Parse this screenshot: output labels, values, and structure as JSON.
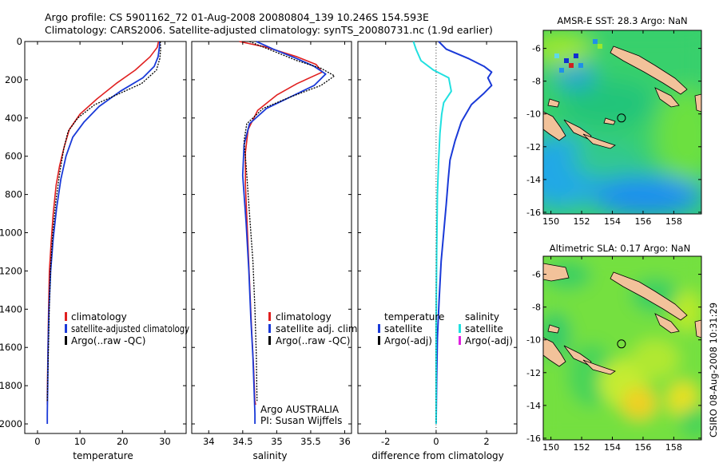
{
  "header": {
    "line1": "Argo profile: CS 5901162_72 01-Aug-2008 20080804_139 10.246S 154.593E",
    "line2": "Climatology: CARS2006. Satellite-adjusted climatology: synTS_20080731.nc (1.9d earlier)"
  },
  "side_label": "CSIRO 08-Aug-2008 10:31:29",
  "colors": {
    "climatology": "#e02020",
    "satellite": "#1a3ad8",
    "argo": "#000000",
    "satellite_diff_salinity": "#20e0e0",
    "argo_adj_salinity": "#e020e0"
  },
  "chart_data": [
    {
      "type": "line",
      "name": "temperature-profile",
      "xlabel": "temperature",
      "ylabel": "",
      "xlim": [
        -3,
        35
      ],
      "ylim": [
        2050,
        0
      ],
      "xticks": [
        0,
        10,
        20,
        30
      ],
      "yticks": [
        0,
        200,
        400,
        600,
        800,
        1000,
        1200,
        1400,
        1600,
        1800,
        2000
      ],
      "y_reversed": true,
      "legend": {
        "placement": "lower-left",
        "entries": [
          {
            "label": "climatology",
            "color": "#e02020"
          },
          {
            "label": "satellite-adjusted climatology",
            "color": "#1a3ad8"
          },
          {
            "label": "Argo(..raw -QC)",
            "color": "#000000"
          }
        ]
      },
      "series": [
        {
          "label": "climatology",
          "color": "#e02020",
          "width": 1.6,
          "dash": "",
          "x": [
            28.5,
            28.2,
            26.5,
            23,
            18.5,
            14,
            10,
            7.5,
            6.3,
            5.2,
            4.4,
            3.7,
            3.2,
            2.8,
            2.6,
            2.5,
            2.4,
            2.3,
            2.3
          ],
          "y": [
            0,
            30,
            80,
            150,
            220,
            300,
            380,
            460,
            550,
            650,
            750,
            900,
            1050,
            1200,
            1400,
            1550,
            1700,
            1850,
            1900
          ]
        },
        {
          "label": "satellite-adjusted",
          "color": "#1a3ad8",
          "width": 1.8,
          "dash": "",
          "x": [
            28.8,
            28.7,
            28.4,
            27.5,
            24.8,
            19.5,
            14.5,
            11,
            8.3,
            6.7,
            5.5,
            4.5,
            3.7,
            3.1,
            2.7,
            2.5,
            2.4,
            2.3,
            2.3
          ],
          "y": [
            0,
            30,
            80,
            130,
            190,
            260,
            340,
            420,
            500,
            600,
            720,
            870,
            1030,
            1200,
            1400,
            1600,
            1800,
            1950,
            2000
          ]
        },
        {
          "label": "Argo(..raw -QC)",
          "color": "#000000",
          "width": 1.3,
          "dash": "2 1.5",
          "x": [
            28.9,
            29,
            28.8,
            28,
            24.5,
            18.5,
            13.5,
            9.5,
            7.2,
            6.2,
            5.2,
            4.3,
            3.6,
            3.1,
            2.8,
            2.6,
            2.4,
            2.3
          ],
          "y": [
            0,
            40,
            90,
            150,
            220,
            280,
            330,
            400,
            470,
            560,
            690,
            840,
            1000,
            1180,
            1380,
            1580,
            1780,
            1880
          ]
        }
      ]
    },
    {
      "type": "line",
      "name": "salinity-profile",
      "xlabel": "salinity",
      "ylabel": "",
      "xlim": [
        33.75,
        36.1
      ],
      "ylim": [
        2050,
        0
      ],
      "xticks": [
        34,
        34.5,
        35,
        35.5,
        36
      ],
      "yticks": [
        0,
        200,
        400,
        600,
        800,
        1000,
        1200,
        1400,
        1600,
        1800,
        2000
      ],
      "y_reversed": true,
      "legend": {
        "placement": "lower-left",
        "entries": [
          {
            "label": "climatology",
            "color": "#e02020"
          },
          {
            "label": "satellite adj. clim.",
            "color": "#1a3ad8"
          },
          {
            "label": "Argo(..raw -QC)",
            "color": "#000000"
          }
        ]
      },
      "annotation": {
        "line1": "Argo AUSTRALIA",
        "line2": "PI: Susan Wijffels"
      },
      "series": [
        {
          "label": "climatology",
          "color": "#e02020",
          "width": 1.6,
          "dash": "",
          "x": [
            34.45,
            34.85,
            35.3,
            35.58,
            35.67,
            35.3,
            35,
            34.72,
            34.58,
            34.54,
            34.54,
            34.57,
            34.6,
            34.63,
            34.66,
            34.68,
            34.69
          ],
          "y": [
            0,
            30,
            80,
            120,
            160,
            220,
            280,
            360,
            460,
            580,
            750,
            1000,
            1250,
            1500,
            1700,
            1880,
            1900
          ]
        },
        {
          "label": "satellite adj. clim.",
          "color": "#1a3ad8",
          "width": 1.8,
          "dash": "",
          "x": [
            34.7,
            34.95,
            35.3,
            35.55,
            35.72,
            35.55,
            35.2,
            34.85,
            34.6,
            34.52,
            34.5,
            34.55,
            34.59,
            34.62,
            34.65,
            34.67,
            34.68,
            34.68
          ],
          "y": [
            0,
            40,
            90,
            130,
            170,
            230,
            290,
            350,
            430,
            540,
            700,
            950,
            1200,
            1450,
            1650,
            1850,
            1950,
            2000
          ]
        },
        {
          "label": "Argo(..raw -QC)",
          "color": "#000000",
          "width": 1.3,
          "dash": "2 1.5",
          "x": [
            34.6,
            34.95,
            35.3,
            35.65,
            35.85,
            35.65,
            35.2,
            34.8,
            34.56,
            34.52,
            34.55,
            34.6,
            34.65,
            34.68,
            34.7,
            34.71
          ],
          "y": [
            0,
            50,
            100,
            140,
            180,
            230,
            290,
            350,
            430,
            520,
            650,
            900,
            1150,
            1400,
            1650,
            1880
          ]
        }
      ]
    },
    {
      "type": "line",
      "name": "difference-from-climatology",
      "xlabel": "difference from climatology",
      "ylabel": "",
      "xlim": [
        -3.1,
        3.2
      ],
      "ylim": [
        2050,
        0
      ],
      "xticks": [
        -2,
        0,
        2
      ],
      "yticks": [
        0,
        200,
        400,
        600,
        800,
        1000,
        1200,
        1400,
        1600,
        1800,
        2000
      ],
      "y_reversed": true,
      "legend": {
        "placement": "lower-center",
        "columns": [
          {
            "title": "temperature",
            "entries": [
              {
                "label": "satellite",
                "color": "#1a3ad8"
              },
              {
                "label": "Argo(-adj)",
                "color": "#000000"
              }
            ]
          },
          {
            "title": "salinity",
            "entries": [
              {
                "label": "satellite",
                "color": "#20e0e0"
              },
              {
                "label": "Argo(-adj)",
                "color": "#e020e0"
              }
            ]
          }
        ]
      },
      "series": [
        {
          "label": "temperature satellite",
          "color": "#1a3ad8",
          "width": 2,
          "dash": "",
          "x": [
            0.1,
            0.4,
            1.3,
            1.9,
            2.2,
            2.05,
            2.2,
            1.9,
            1.4,
            1.0,
            0.75,
            0.55,
            0.48,
            0.4,
            0.3,
            0.2,
            0.12,
            0.05,
            0.02,
            0
          ],
          "y": [
            0,
            40,
            90,
            130,
            160,
            190,
            230,
            270,
            330,
            420,
            520,
            620,
            720,
            850,
            1000,
            1150,
            1350,
            1550,
            1750,
            2000
          ]
        },
        {
          "label": "salinity satellite",
          "color": "#20e0e0",
          "width": 2,
          "dash": "",
          "x": [
            -0.9,
            -0.8,
            -0.6,
            -0.1,
            0.5,
            0.6,
            0.3,
            0.22,
            0.15,
            0.1,
            0.05,
            0.02,
            0,
            0
          ],
          "y": [
            0,
            40,
            100,
            150,
            190,
            260,
            320,
            380,
            480,
            620,
            800,
            1100,
            1500,
            2000
          ]
        },
        {
          "label": "zero-line",
          "color": "#000000",
          "width": 0.8,
          "dash": "1 2.5",
          "x": [
            0,
            0
          ],
          "y": [
            0,
            2050
          ]
        }
      ]
    },
    {
      "type": "heatmap",
      "name": "sst-map",
      "title": "AMSR-E SST: 28.3 Argo: NaN",
      "xlim": [
        149.5,
        159.8
      ],
      "ylim": [
        -16.1,
        -4.9
      ],
      "xticks": [
        150,
        152,
        154,
        156,
        158
      ],
      "yticks": [
        -6,
        -8,
        -10,
        -12,
        -14,
        -16
      ],
      "marker": {
        "lon": 154.593,
        "lat": -10.246
      }
    },
    {
      "type": "heatmap",
      "name": "sla-map",
      "title": "Altimetric SLA: 0.17 Argo: NaN",
      "xlim": [
        149.5,
        159.8
      ],
      "ylim": [
        -16.1,
        -4.9
      ],
      "xticks": [
        150,
        152,
        154,
        156,
        158
      ],
      "yticks": [
        -6,
        -8,
        -10,
        -12,
        -14,
        -16
      ],
      "marker": {
        "lon": 154.593,
        "lat": -10.246
      }
    }
  ]
}
